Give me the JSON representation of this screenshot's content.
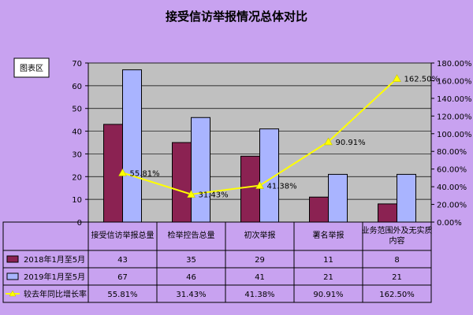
{
  "chart_data": {
    "type": "bar",
    "title": "接受信访举报情况总体对比",
    "plot_area_label": "图表区",
    "categories": [
      "接受信访举报总量",
      "检举控告总量",
      "初次举报",
      "署名举报",
      "业务范围外及无实质内容"
    ],
    "category_lines": [
      [
        "接受信访举报总量"
      ],
      [
        "检举控告总量"
      ],
      [
        "初次举报"
      ],
      [
        "署名举报"
      ],
      [
        "业务范围外及无实质",
        "内容"
      ]
    ],
    "ylim": [
      0,
      70
    ],
    "y_ticks": [
      "0",
      "10",
      "20",
      "30",
      "40",
      "50",
      "60",
      "70"
    ],
    "y2lim": [
      0,
      180
    ],
    "y2_ticks": [
      "0.00%",
      "20.00%",
      "40.00%",
      "60.00%",
      "80.00%",
      "100.00%",
      "120.00%",
      "140.00%",
      "160.00%",
      "180.00%"
    ],
    "grid": "horizontal",
    "legend": "data-table-bottom",
    "series": [
      {
        "name": "2018年1月至5月",
        "kind": "bar",
        "color": "#8b2252",
        "values": [
          43,
          35,
          29,
          11,
          8
        ],
        "table_values": [
          "43",
          "35",
          "29",
          "11",
          "8"
        ]
      },
      {
        "name": "2019年1月至5月",
        "kind": "bar",
        "color": "#a9b4ff",
        "values": [
          67,
          46,
          41,
          21,
          21
        ],
        "table_values": [
          "67",
          "46",
          "41",
          "21",
          "21"
        ]
      },
      {
        "name": "较去年同比增长率",
        "kind": "line",
        "axis": "secondary",
        "color": "#ffff00",
        "values": [
          55.81,
          31.43,
          41.38,
          90.91,
          162.5
        ],
        "labels": [
          "55.81%",
          "31.43%",
          "41.38%",
          "90.91%",
          "162.50%"
        ],
        "table_values": [
          "55.81%",
          "31.43%",
          "41.38%",
          "90.91%",
          "162.50%"
        ]
      }
    ]
  }
}
